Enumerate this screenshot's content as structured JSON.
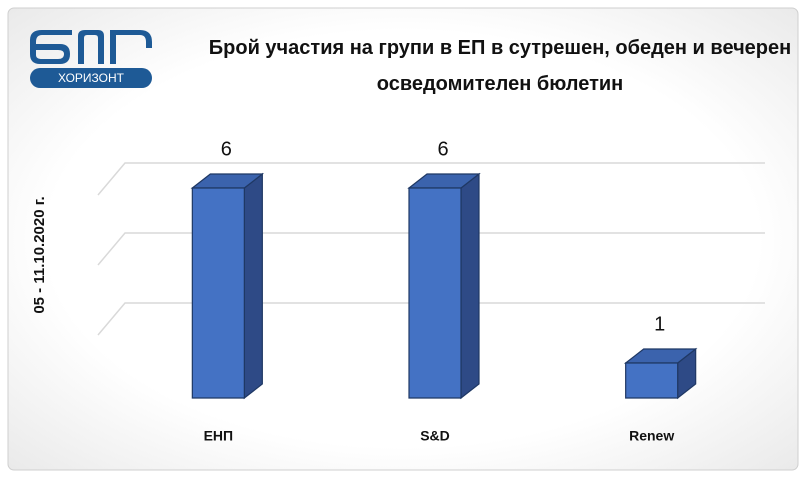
{
  "logo": "ХОРИЗОНТ",
  "chart_data": {
    "type": "bar3d",
    "title": "Брой участия на групи в ЕП в сутрешен, обеден и вечерен осведомителен бюлетин",
    "y_label": "05 - 11.10.2020 г.",
    "categories": [
      "ЕНП",
      "S&D",
      "Renew"
    ],
    "values": [
      6,
      6,
      1
    ],
    "color": "#4472c4",
    "ylim": [
      0,
      6
    ],
    "yticks": [
      0,
      2,
      4,
      6
    ],
    "grid": true
  }
}
